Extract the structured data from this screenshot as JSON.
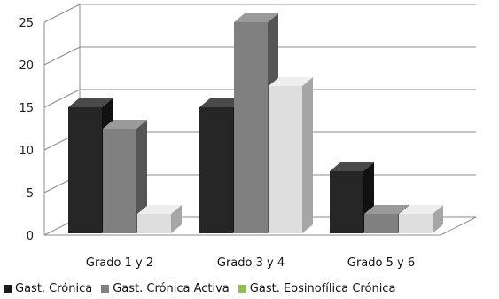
{
  "chart_data": {
    "type": "bar",
    "categories": [
      "Grado 1 y 2",
      "Grado 3 y 4",
      "Grado 5 y 6"
    ],
    "series": [
      {
        "name": "Gast. Crónica",
        "values": [
          15,
          15,
          7.5
        ]
      },
      {
        "name": "Gast. Crónica Activa",
        "values": [
          12.5,
          25,
          2.5
        ]
      },
      {
        "name": "Gast. Eosinofílica Crónica",
        "values": [
          2.5,
          17.5,
          2.5
        ]
      }
    ],
    "ylim": [
      0,
      25
    ],
    "yticks": [
      "0",
      "5",
      "10",
      "15",
      "20",
      "25"
    ],
    "legend_position": "bottom",
    "grid": true,
    "colors": {
      "series_front": [
        "#262626",
        "#808080",
        "#dedede"
      ],
      "series_side": [
        "#111111",
        "#555555",
        "#a6a6a6"
      ],
      "series_top": [
        "#4a4a4a",
        "#9a9a9a",
        "#eeeeee"
      ],
      "legend_swatches": [
        "#1a1a1a",
        "#808080",
        "#92c050"
      ]
    }
  }
}
